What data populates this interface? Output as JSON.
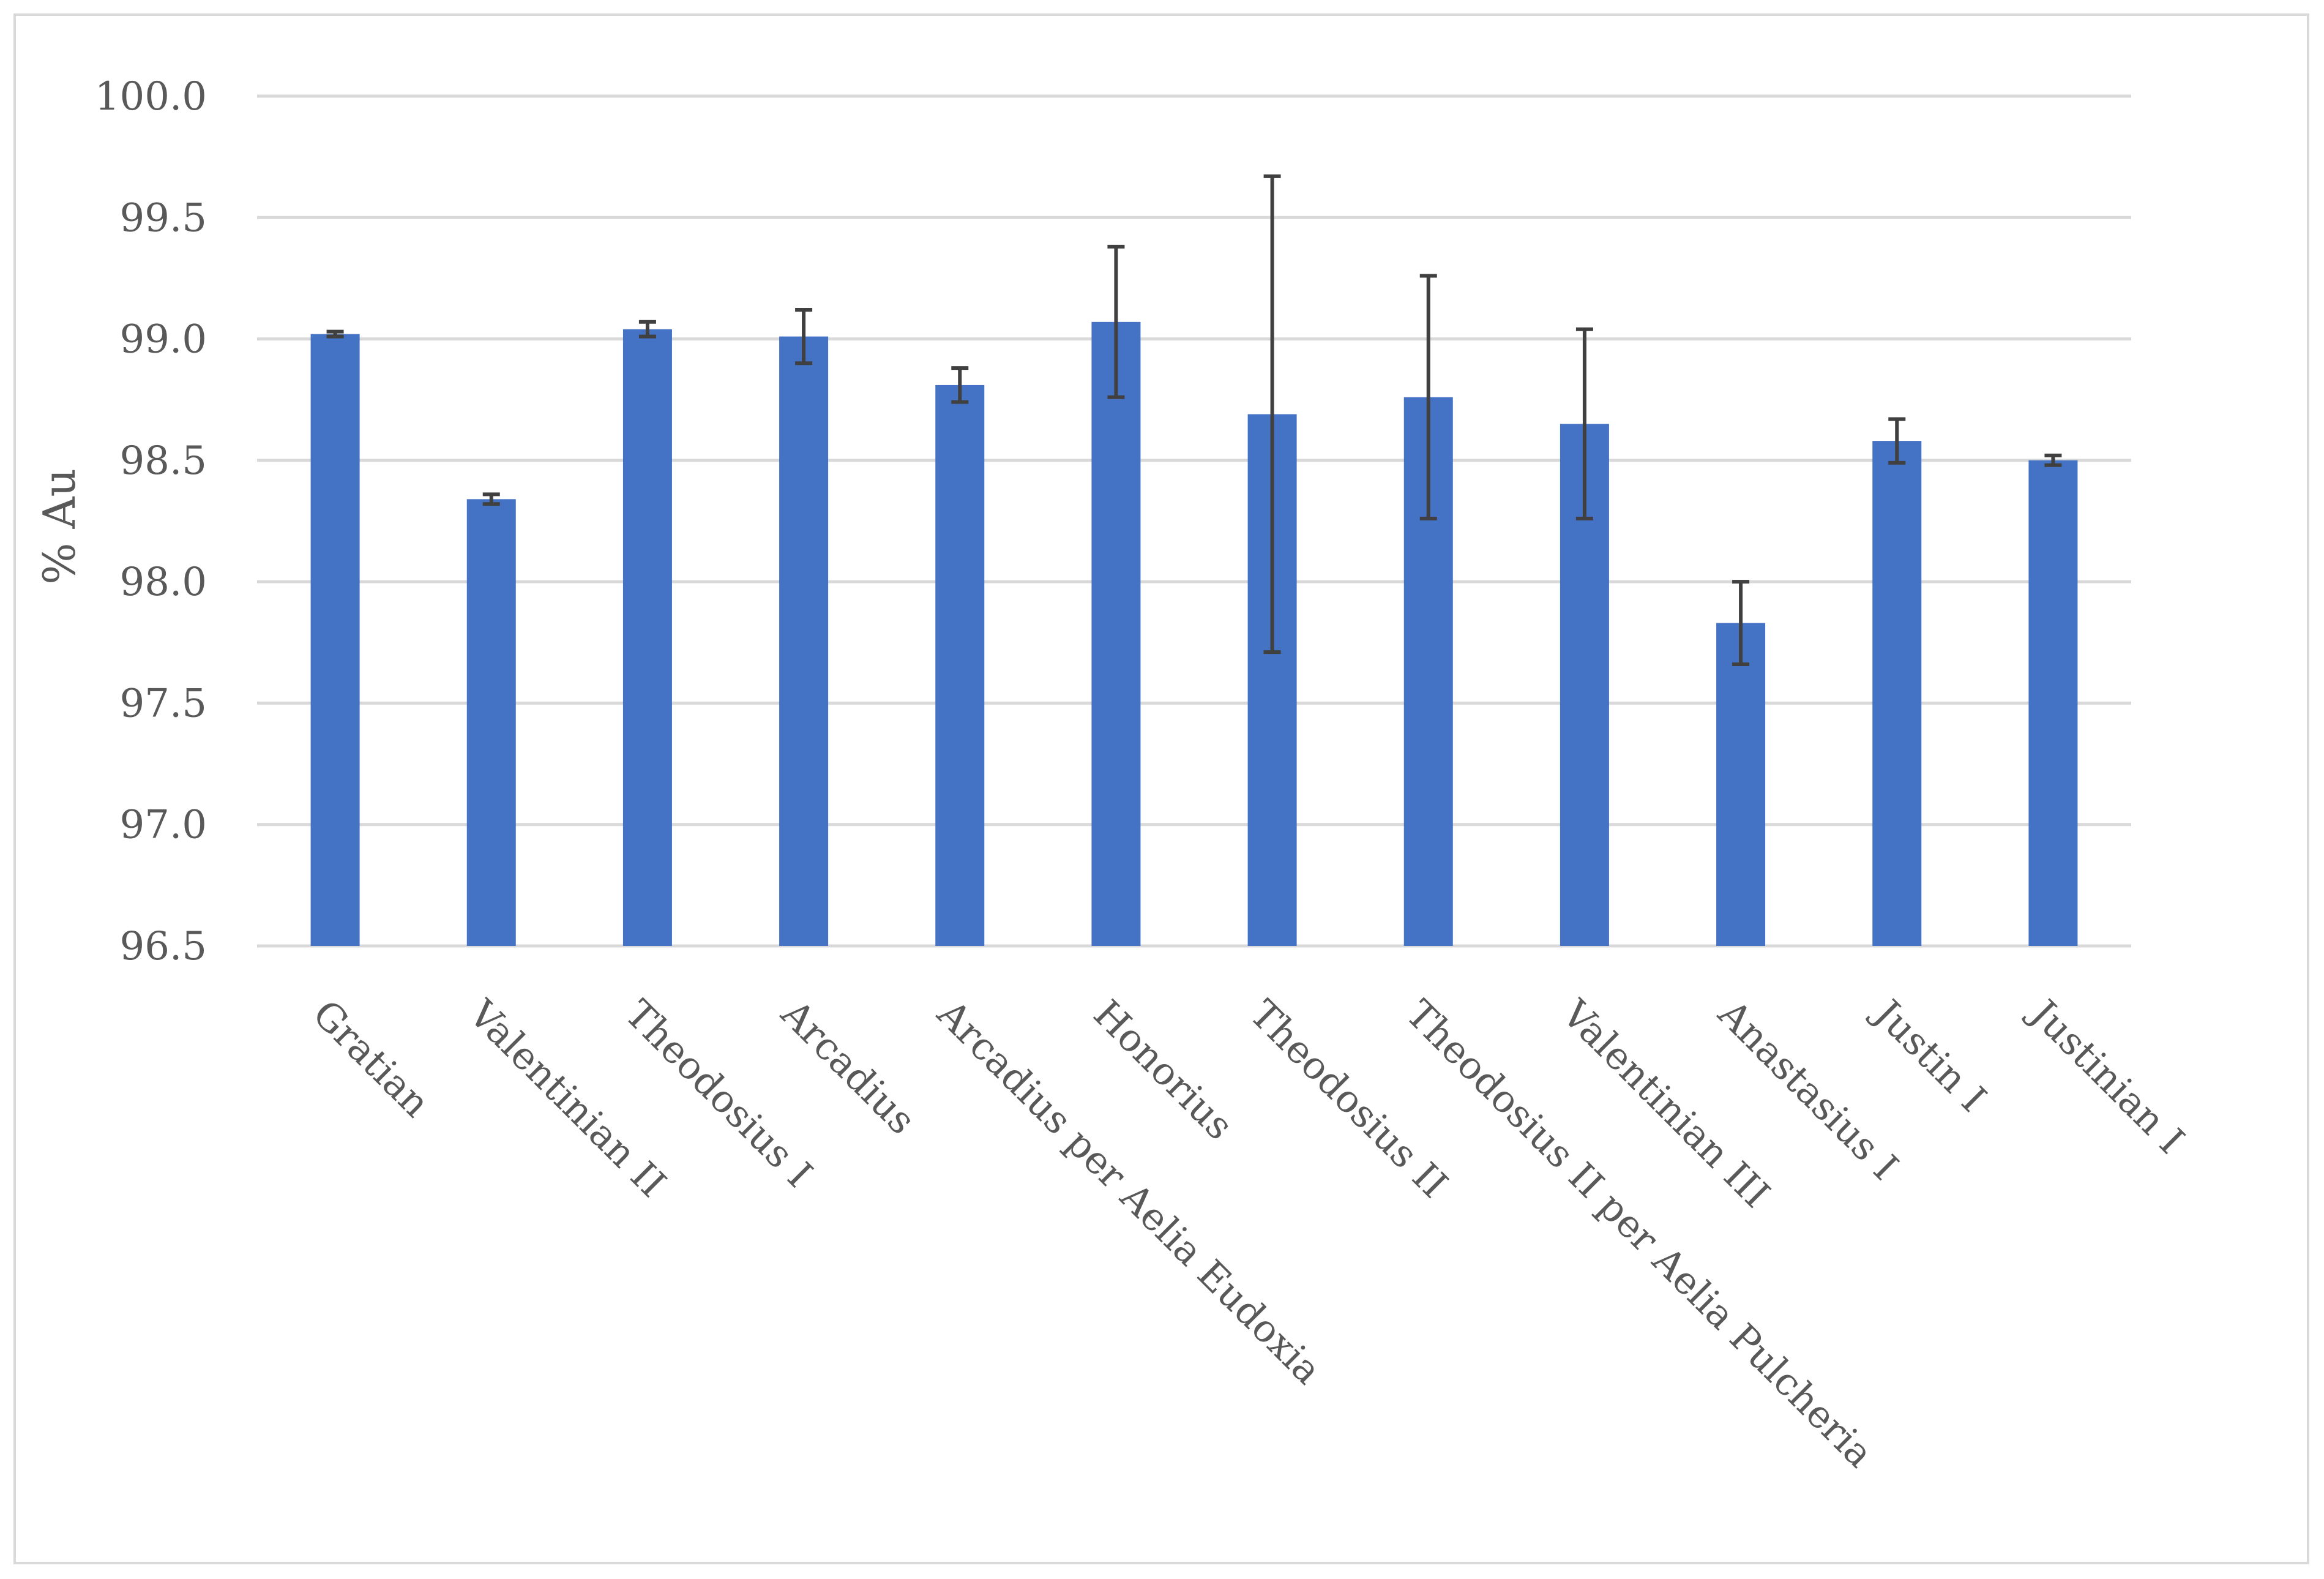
{
  "chart_data": {
    "type": "bar",
    "title": "",
    "xlabel": "",
    "ylabel": "% Au",
    "ylim": [
      96.5,
      100.0
    ],
    "yticks": [
      96.5,
      97.0,
      97.5,
      98.0,
      98.5,
      99.0,
      99.5,
      100.0
    ],
    "ytick_labels": [
      "96.5",
      "97.0",
      "97.5",
      "98.0",
      "98.5",
      "99.0",
      "99.5",
      "100.0"
    ],
    "grid": true,
    "legend": "none",
    "categories": [
      "Gratian",
      "Valentinian II",
      "Theodosius I",
      "Arcadius",
      "Arcadius per Aelia Eudoxia",
      "Honorius",
      "Theodosius II",
      "Theodosius II per Aelia Pulcheria",
      "Valentinian III",
      "Anastasius I",
      "Justin I",
      "Justinian I"
    ],
    "values": [
      99.02,
      98.34,
      99.04,
      99.01,
      98.81,
      99.07,
      98.69,
      98.76,
      98.65,
      97.83,
      98.58,
      98.5
    ],
    "error_bars": [
      0.01,
      0.02,
      0.03,
      0.11,
      0.07,
      0.31,
      0.98,
      0.5,
      0.39,
      0.17,
      0.09,
      0.02
    ],
    "colors": {
      "bar": "#4472c4",
      "error_bar": "#404040",
      "grid": "#d9d9d9",
      "text": "#595959",
      "frame": "#d9d9d9"
    }
  }
}
